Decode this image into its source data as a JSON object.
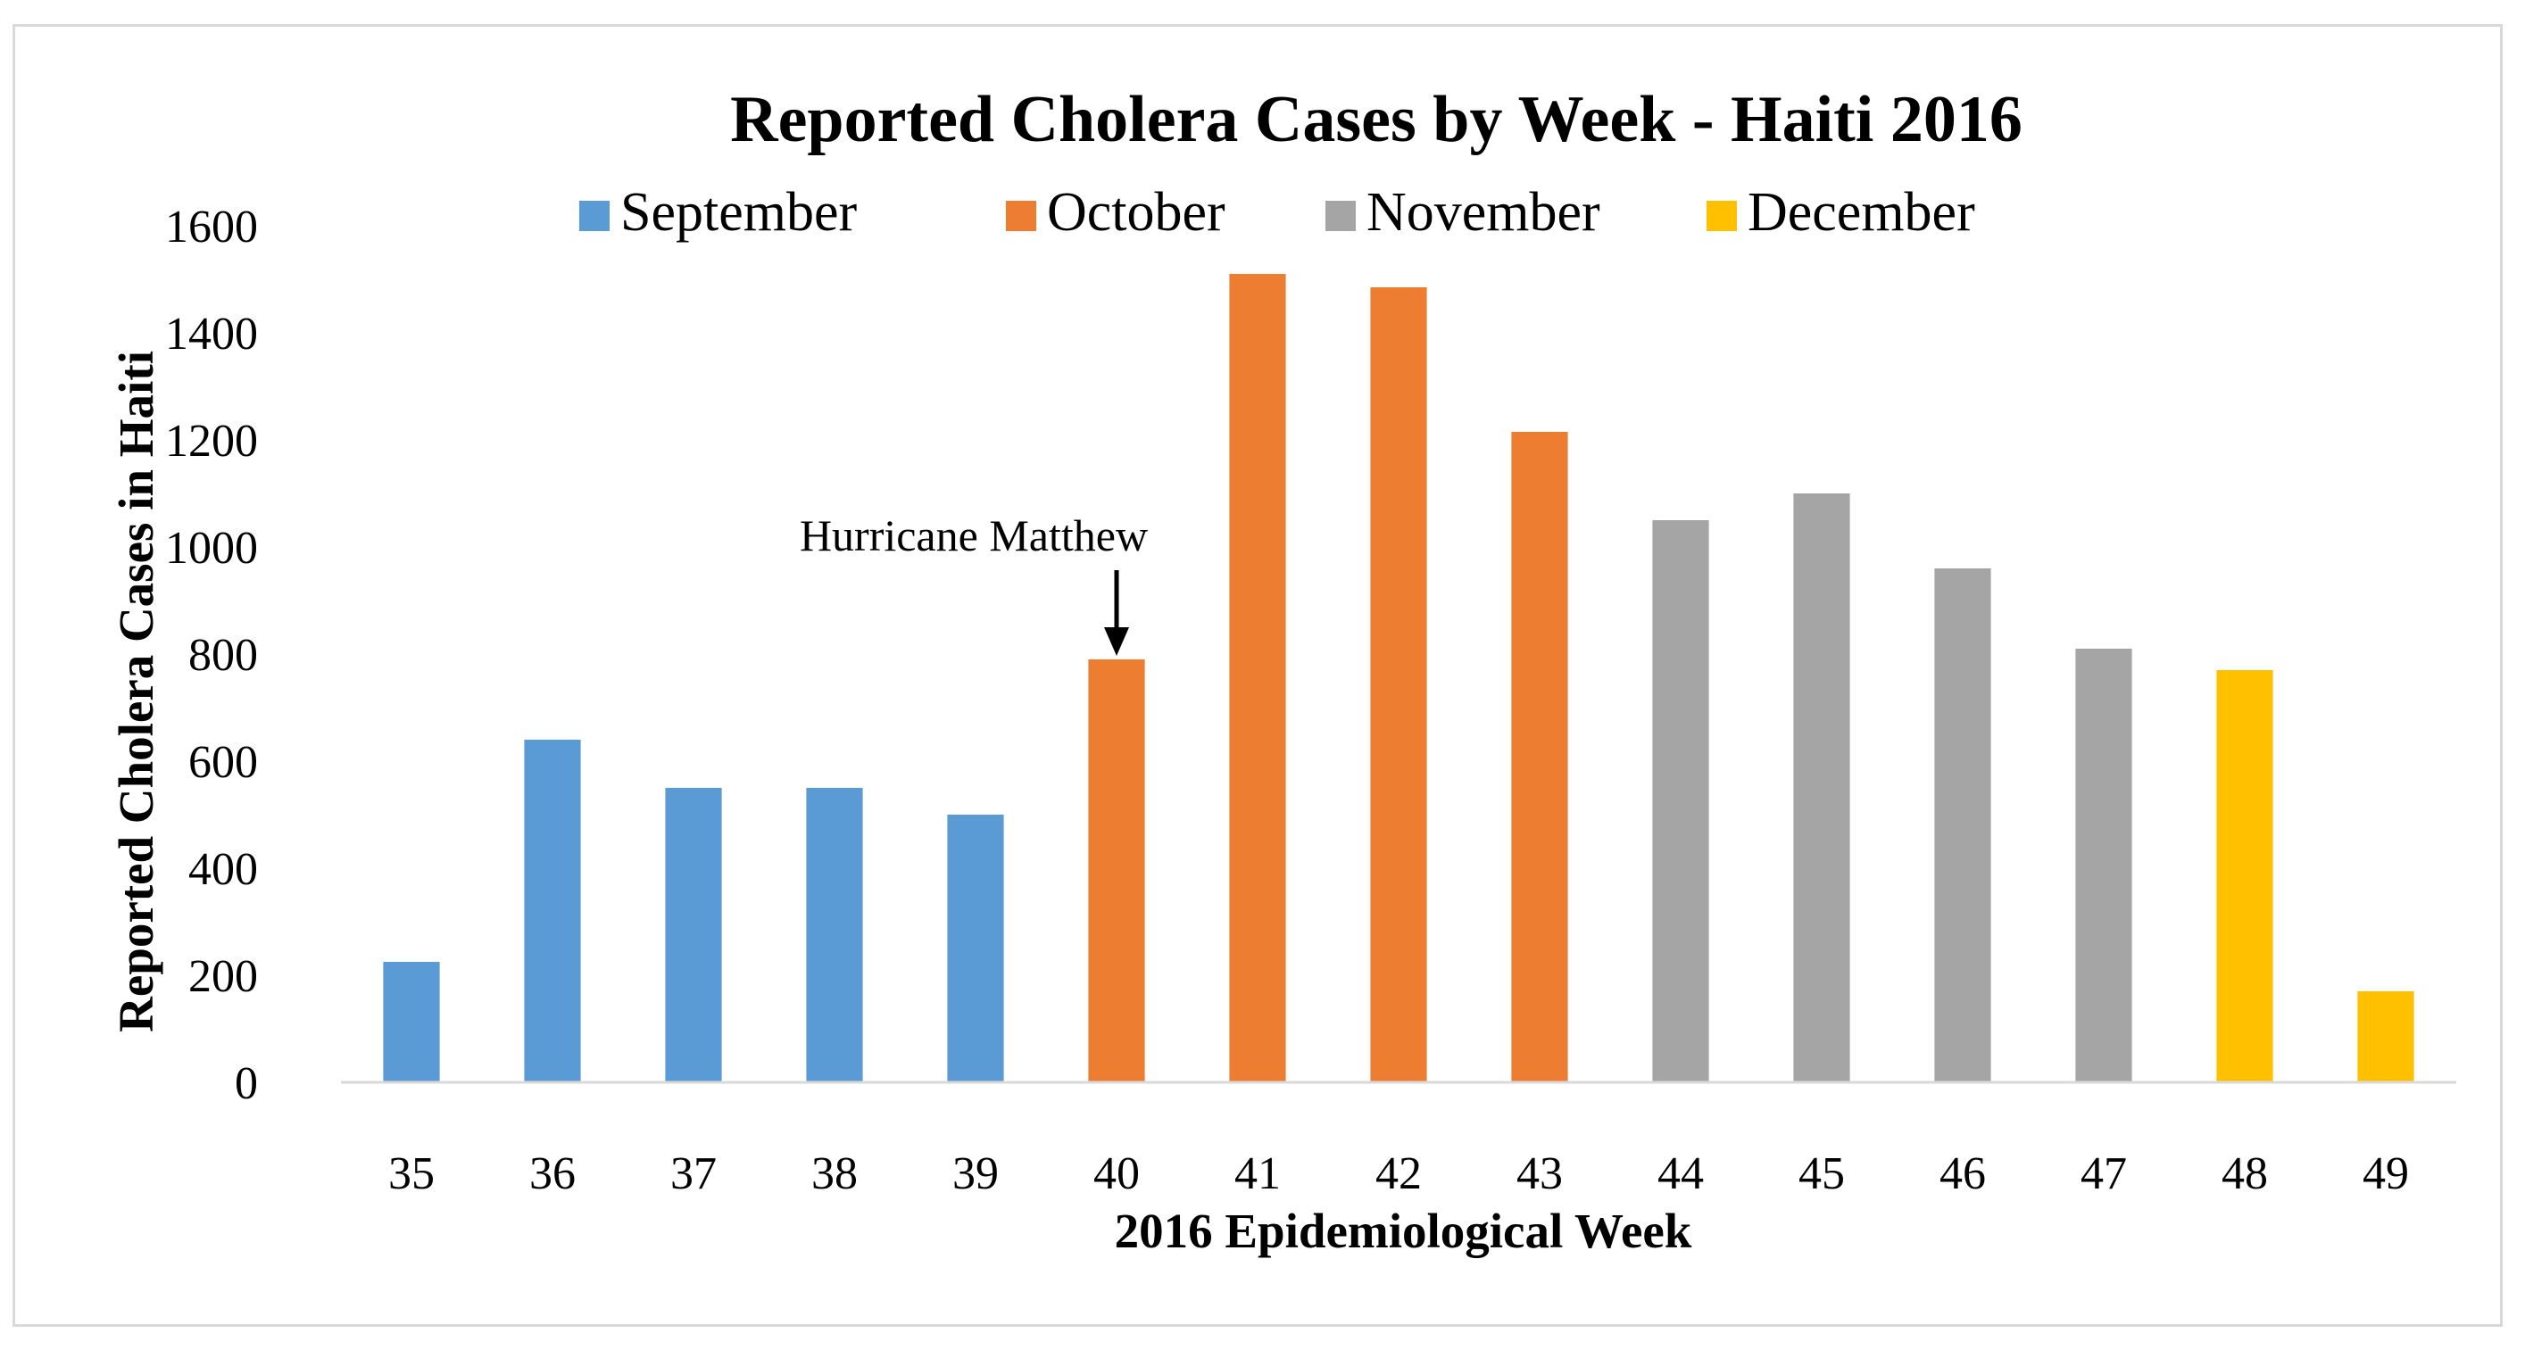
{
  "chart_data": {
    "type": "bar",
    "title": "Reported Cholera Cases by Week - Haiti 2016",
    "xlabel": "2016 Epidemiological Week",
    "ylabel": "Reported Cholera Cases in Haiti",
    "ylim": [
      0,
      1600
    ],
    "yticks": [
      "0",
      "200",
      "400",
      "600",
      "800",
      "1000",
      "1200",
      "1400",
      "1600"
    ],
    "grid": false,
    "legend_position": "top",
    "categories": [
      "35",
      "36",
      "37",
      "38",
      "39",
      "40",
      "41",
      "42",
      "43",
      "44",
      "45",
      "46",
      "47",
      "48",
      "49"
    ],
    "values": [
      225,
      640,
      550,
      550,
      500,
      790,
      1510,
      1485,
      1215,
      1050,
      1100,
      960,
      810,
      770,
      170
    ],
    "months": [
      "September",
      "September",
      "September",
      "September",
      "September",
      "October",
      "October",
      "October",
      "October",
      "November",
      "November",
      "November",
      "November",
      "December",
      "December"
    ],
    "legend": [
      {
        "name": "September",
        "color": "#5b9bd5"
      },
      {
        "name": "October",
        "color": "#ed7d31"
      },
      {
        "name": "November",
        "color": "#a5a5a5"
      },
      {
        "name": "December",
        "color": "#ffc000"
      }
    ],
    "annotation": {
      "text": "Hurricane Matthew",
      "category": "40"
    }
  }
}
